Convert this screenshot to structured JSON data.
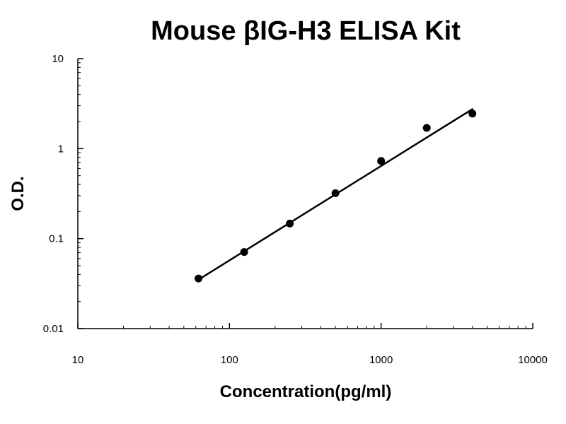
{
  "chart_data": {
    "type": "scatter",
    "title": "Mouse βIG-H3 ELISA Kit",
    "xlabel": "Concentration(pg/ml)",
    "ylabel": "O.D.",
    "x_scale": "log",
    "y_scale": "log",
    "xlim": [
      10,
      10000
    ],
    "ylim": [
      0.01,
      10
    ],
    "x_ticks": [
      {
        "value": 10,
        "label": "10"
      },
      {
        "value": 100,
        "label": "100"
      },
      {
        "value": 1000,
        "label": "1000"
      },
      {
        "value": 10000,
        "label": "10000"
      }
    ],
    "y_ticks": [
      {
        "value": 0.01,
        "label": "0.01"
      },
      {
        "value": 0.1,
        "label": "0.1"
      },
      {
        "value": 1,
        "label": "1"
      },
      {
        "value": 10,
        "label": "10"
      }
    ],
    "grid": false,
    "legend": "none",
    "series": [
      {
        "points": [
          {
            "x": 62.5,
            "y": 0.036
          },
          {
            "x": 125,
            "y": 0.071
          },
          {
            "x": 250,
            "y": 0.147
          },
          {
            "x": 500,
            "y": 0.32
          },
          {
            "x": 1000,
            "y": 0.73
          },
          {
            "x": 2000,
            "y": 1.7
          },
          {
            "x": 4000,
            "y": 2.45
          }
        ],
        "trendline": {
          "type": "power",
          "x_range": [
            62.5,
            4000
          ],
          "y_range": [
            0.035,
            2.75
          ]
        },
        "color": "#000000"
      }
    ]
  }
}
